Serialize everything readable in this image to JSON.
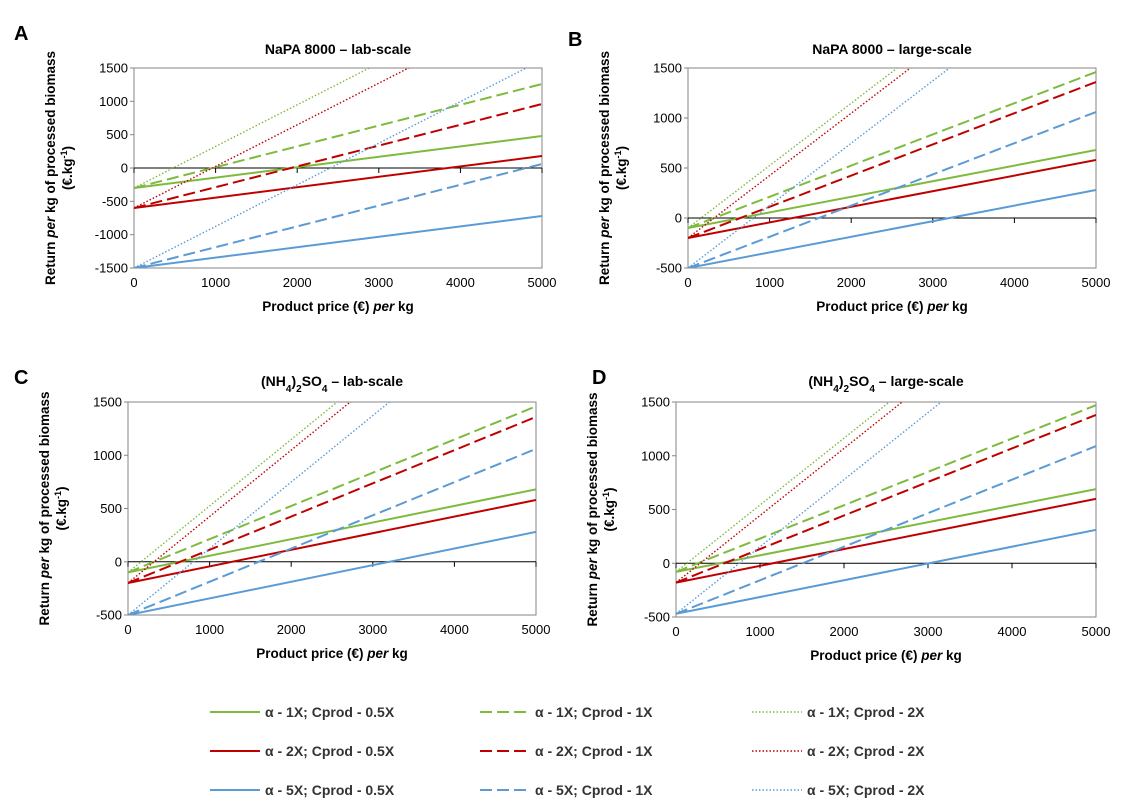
{
  "chart_data": [
    {
      "panel": "A",
      "type": "line",
      "title": "NaPA 8000 – lab-scale",
      "title_parts": [
        "NaPA 8000 – lab-scale"
      ],
      "xlabel_parts": [
        "Product price (€) ",
        "per",
        " kg"
      ],
      "ylabel_parts": [
        "Return ",
        "per",
        " kg of processed biomass"
      ],
      "ylabel2_parts": [
        "(€.kg",
        "-1",
        ")"
      ],
      "xlim": [
        0,
        5000
      ],
      "ylim": [
        -1500,
        1500
      ],
      "xticks": [
        0,
        1000,
        2000,
        3000,
        4000,
        5000
      ],
      "yticks": [
        -1500,
        -1000,
        -500,
        0,
        500,
        1000,
        1500
      ],
      "grid": false,
      "series": [
        {
          "name": "α - 1X; Cprod - 0.5X",
          "x": [
            0,
            5000
          ],
          "y": [
            -300,
            480
          ]
        },
        {
          "name": "α - 1X; Cprod - 1X",
          "x": [
            0,
            5000
          ],
          "y": [
            -300,
            1260
          ]
        },
        {
          "name": "α - 1X; Cprod - 2X",
          "x": [
            0,
            5000
          ],
          "y": [
            -300,
            2820
          ]
        },
        {
          "name": "α - 2X; Cprod - 0.5X",
          "x": [
            0,
            5000
          ],
          "y": [
            -600,
            180
          ]
        },
        {
          "name": "α - 2X; Cprod - 1X",
          "x": [
            0,
            5000
          ],
          "y": [
            -600,
            960
          ]
        },
        {
          "name": "α - 2X; Cprod - 2X",
          "x": [
            0,
            5000
          ],
          "y": [
            -600,
            2520
          ]
        },
        {
          "name": "α - 5X; Cprod - 0.5X",
          "x": [
            0,
            5000
          ],
          "y": [
            -1500,
            -720
          ]
        },
        {
          "name": "α - 5X; Cprod - 1X",
          "x": [
            0,
            5000
          ],
          "y": [
            -1500,
            60
          ]
        },
        {
          "name": "α - 5X; Cprod - 2X",
          "x": [
            0,
            5000
          ],
          "y": [
            -1500,
            1620
          ]
        }
      ]
    },
    {
      "panel": "B",
      "type": "line",
      "title": "NaPA 8000 – large-scale",
      "title_parts": [
        "NaPA 8000 – large-scale"
      ],
      "xlabel_parts": [
        "Product price (€) ",
        "per",
        " kg"
      ],
      "ylabel_parts": [
        "Return ",
        "per",
        " kg of processed biomass"
      ],
      "ylabel2_parts": [
        "(€.kg",
        "-1",
        ")"
      ],
      "xlim": [
        0,
        5000
      ],
      "ylim": [
        -500,
        1500
      ],
      "xticks": [
        0,
        1000,
        2000,
        3000,
        4000,
        5000
      ],
      "yticks": [
        -500,
        0,
        500,
        1000,
        1500
      ],
      "grid": false,
      "series": [
        {
          "name": "α - 1X; Cprod - 0.5X",
          "x": [
            0,
            5000
          ],
          "y": [
            -100,
            680
          ]
        },
        {
          "name": "α - 1X; Cprod - 1X",
          "x": [
            0,
            5000
          ],
          "y": [
            -100,
            1460
          ]
        },
        {
          "name": "α - 1X; Cprod - 2X",
          "x": [
            0,
            5000
          ],
          "y": [
            -100,
            3020
          ]
        },
        {
          "name": "α - 2X; Cprod - 0.5X",
          "x": [
            0,
            5000
          ],
          "y": [
            -200,
            580
          ]
        },
        {
          "name": "α - 2X; Cprod - 1X",
          "x": [
            0,
            5000
          ],
          "y": [
            -200,
            1360
          ]
        },
        {
          "name": "α - 2X; Cprod - 2X",
          "x": [
            0,
            5000
          ],
          "y": [
            -200,
            2920
          ]
        },
        {
          "name": "α - 5X; Cprod - 0.5X",
          "x": [
            0,
            5000
          ],
          "y": [
            -500,
            280
          ]
        },
        {
          "name": "α - 5X; Cprod - 1X",
          "x": [
            0,
            5000
          ],
          "y": [
            -500,
            1060
          ]
        },
        {
          "name": "α - 5X; Cprod - 2X",
          "x": [
            0,
            5000
          ],
          "y": [
            -500,
            2620
          ]
        }
      ]
    },
    {
      "panel": "C",
      "type": "line",
      "title": "(NH4)2SO4 – lab-scale",
      "title_parts": [
        "(NH",
        "4",
        ")",
        "2",
        "SO",
        "4",
        " – lab-scale"
      ],
      "xlabel_parts": [
        "Product price (€) ",
        "per",
        " kg"
      ],
      "ylabel_parts": [
        "Return ",
        "per",
        " kg of processed biomass"
      ],
      "ylabel2_parts": [
        "(€.kg",
        "-1",
        ")"
      ],
      "xlim": [
        0,
        5000
      ],
      "ylim": [
        -500,
        1500
      ],
      "xticks": [
        0,
        1000,
        2000,
        3000,
        4000,
        5000
      ],
      "yticks": [
        -500,
        0,
        500,
        1000,
        1500
      ],
      "grid": false,
      "series": [
        {
          "name": "α - 1X; Cprod - 0.5X",
          "x": [
            0,
            5000
          ],
          "y": [
            -100,
            680
          ]
        },
        {
          "name": "α - 1X; Cprod - 1X",
          "x": [
            0,
            5000
          ],
          "y": [
            -100,
            1460
          ]
        },
        {
          "name": "α - 1X; Cprod - 2X",
          "x": [
            0,
            5000
          ],
          "y": [
            -100,
            3020
          ]
        },
        {
          "name": "α - 2X; Cprod - 0.5X",
          "x": [
            0,
            5000
          ],
          "y": [
            -200,
            580
          ]
        },
        {
          "name": "α - 2X; Cprod - 1X",
          "x": [
            0,
            5000
          ],
          "y": [
            -200,
            1360
          ]
        },
        {
          "name": "α - 2X; Cprod - 2X",
          "x": [
            0,
            5000
          ],
          "y": [
            -200,
            2920
          ]
        },
        {
          "name": "α - 5X; Cprod - 0.5X",
          "x": [
            0,
            5000
          ],
          "y": [
            -500,
            280
          ]
        },
        {
          "name": "α - 5X; Cprod - 1X",
          "x": [
            0,
            5000
          ],
          "y": [
            -500,
            1060
          ]
        },
        {
          "name": "α - 5X; Cprod - 2X",
          "x": [
            0,
            5000
          ],
          "y": [
            -500,
            2620
          ]
        }
      ]
    },
    {
      "panel": "D",
      "type": "line",
      "title": "(NH4)2SO4 – large-scale",
      "title_parts": [
        "(NH",
        "4",
        ")",
        "2",
        "SO",
        "4",
        " – large-scale"
      ],
      "xlabel_parts": [
        "Product price (€) ",
        "per",
        " kg"
      ],
      "ylabel_parts": [
        "Return ",
        "per",
        " kg of processed biomass"
      ],
      "ylabel2_parts": [
        "(€.kg",
        "-1",
        ")"
      ],
      "xlim": [
        0,
        5000
      ],
      "ylim": [
        -500,
        1500
      ],
      "xticks": [
        0,
        1000,
        2000,
        3000,
        4000,
        5000
      ],
      "yticks": [
        -500,
        0,
        500,
        1000,
        1500
      ],
      "grid": false,
      "series": [
        {
          "name": "α - 1X; Cprod - 0.5X",
          "x": [
            0,
            5000
          ],
          "y": [
            -80,
            690
          ]
        },
        {
          "name": "α - 1X; Cprod - 1X",
          "x": [
            0,
            5000
          ],
          "y": [
            -80,
            1470
          ]
        },
        {
          "name": "α - 1X; Cprod - 2X",
          "x": [
            0,
            5000
          ],
          "y": [
            -80,
            3030
          ]
        },
        {
          "name": "α - 2X; Cprod - 0.5X",
          "x": [
            0,
            5000
          ],
          "y": [
            -180,
            600
          ]
        },
        {
          "name": "α - 2X; Cprod - 1X",
          "x": [
            0,
            5000
          ],
          "y": [
            -180,
            1380
          ]
        },
        {
          "name": "α - 2X; Cprod - 2X",
          "x": [
            0,
            5000
          ],
          "y": [
            -180,
            2940
          ]
        },
        {
          "name": "α - 5X; Cprod - 0.5X",
          "x": [
            0,
            5000
          ],
          "y": [
            -470,
            310
          ]
        },
        {
          "name": "α - 5X; Cprod - 1X",
          "x": [
            0,
            5000
          ],
          "y": [
            -470,
            1090
          ]
        },
        {
          "name": "α - 5X; Cprod - 2X",
          "x": [
            0,
            5000
          ],
          "y": [
            -470,
            2650
          ]
        }
      ]
    }
  ],
  "legend": {
    "placement": "bottom",
    "items": [
      {
        "label": "α - 1X; Cprod - 0.5X",
        "color": "#7dba3e",
        "style": "solid"
      },
      {
        "label": "α - 1X; Cprod - 1X",
        "color": "#7dba3e",
        "style": "dashed"
      },
      {
        "label": "α - 1X; Cprod - 2X",
        "color": "#7dba3e",
        "style": "dotted"
      },
      {
        "label": "α - 2X; Cprod - 0.5X",
        "color": "#c00000",
        "style": "solid"
      },
      {
        "label": "α - 2X; Cprod - 1X",
        "color": "#c00000",
        "style": "dashed"
      },
      {
        "label": "α - 2X; Cprod - 2X",
        "color": "#c00000",
        "style": "dotted"
      },
      {
        "label": "α - 5X; Cprod - 0.5X",
        "color": "#5b9bd5",
        "style": "solid"
      },
      {
        "label": "α - 5X; Cprod - 1X",
        "color": "#5b9bd5",
        "style": "dashed"
      },
      {
        "label": "α - 5X; Cprod - 2X",
        "color": "#5b9bd5",
        "style": "dotted"
      }
    ]
  }
}
